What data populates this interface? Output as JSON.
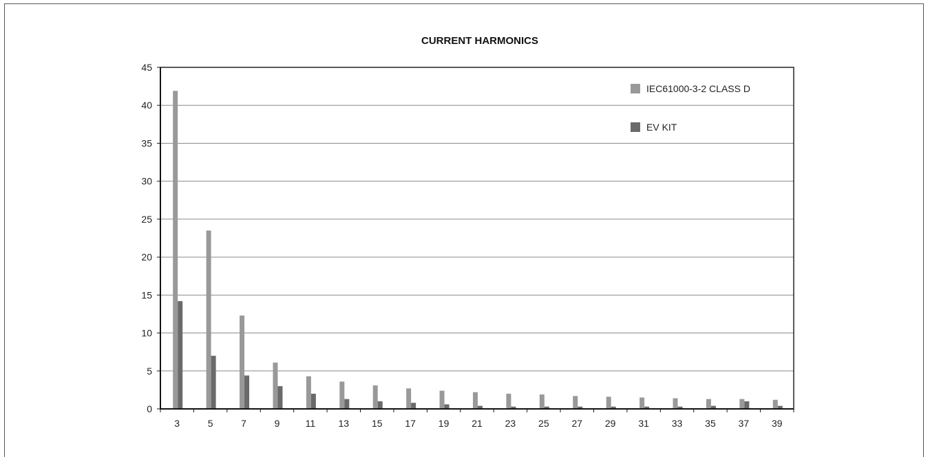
{
  "chart_data": {
    "type": "bar",
    "title": "CURRENT HARMONICS",
    "xlabel": "",
    "ylabel": "",
    "categories": [
      "3",
      "5",
      "7",
      "9",
      "11",
      "13",
      "15",
      "17",
      "19",
      "21",
      "23",
      "25",
      "27",
      "29",
      "31",
      "33",
      "35",
      "37",
      "39"
    ],
    "ylim": [
      0,
      45
    ],
    "yticks": [
      0,
      5,
      10,
      15,
      20,
      25,
      30,
      35,
      40,
      45
    ],
    "grid": true,
    "legend_position": "top-right",
    "series": [
      {
        "name": "IEC61000-3-2 CLASS D",
        "color": "#999999",
        "values": [
          41.9,
          23.5,
          12.3,
          6.1,
          4.3,
          3.6,
          3.1,
          2.7,
          2.4,
          2.2,
          2.0,
          1.9,
          1.7,
          1.6,
          1.5,
          1.4,
          1.3,
          1.3,
          1.2
        ]
      },
      {
        "name": "EV KIT",
        "color": "#6a6a6a",
        "values": [
          14.2,
          7.0,
          4.4,
          3.0,
          2.0,
          1.3,
          1.0,
          0.8,
          0.6,
          0.4,
          0.3,
          0.3,
          0.3,
          0.3,
          0.3,
          0.3,
          0.4,
          1.0,
          0.4
        ]
      }
    ]
  }
}
